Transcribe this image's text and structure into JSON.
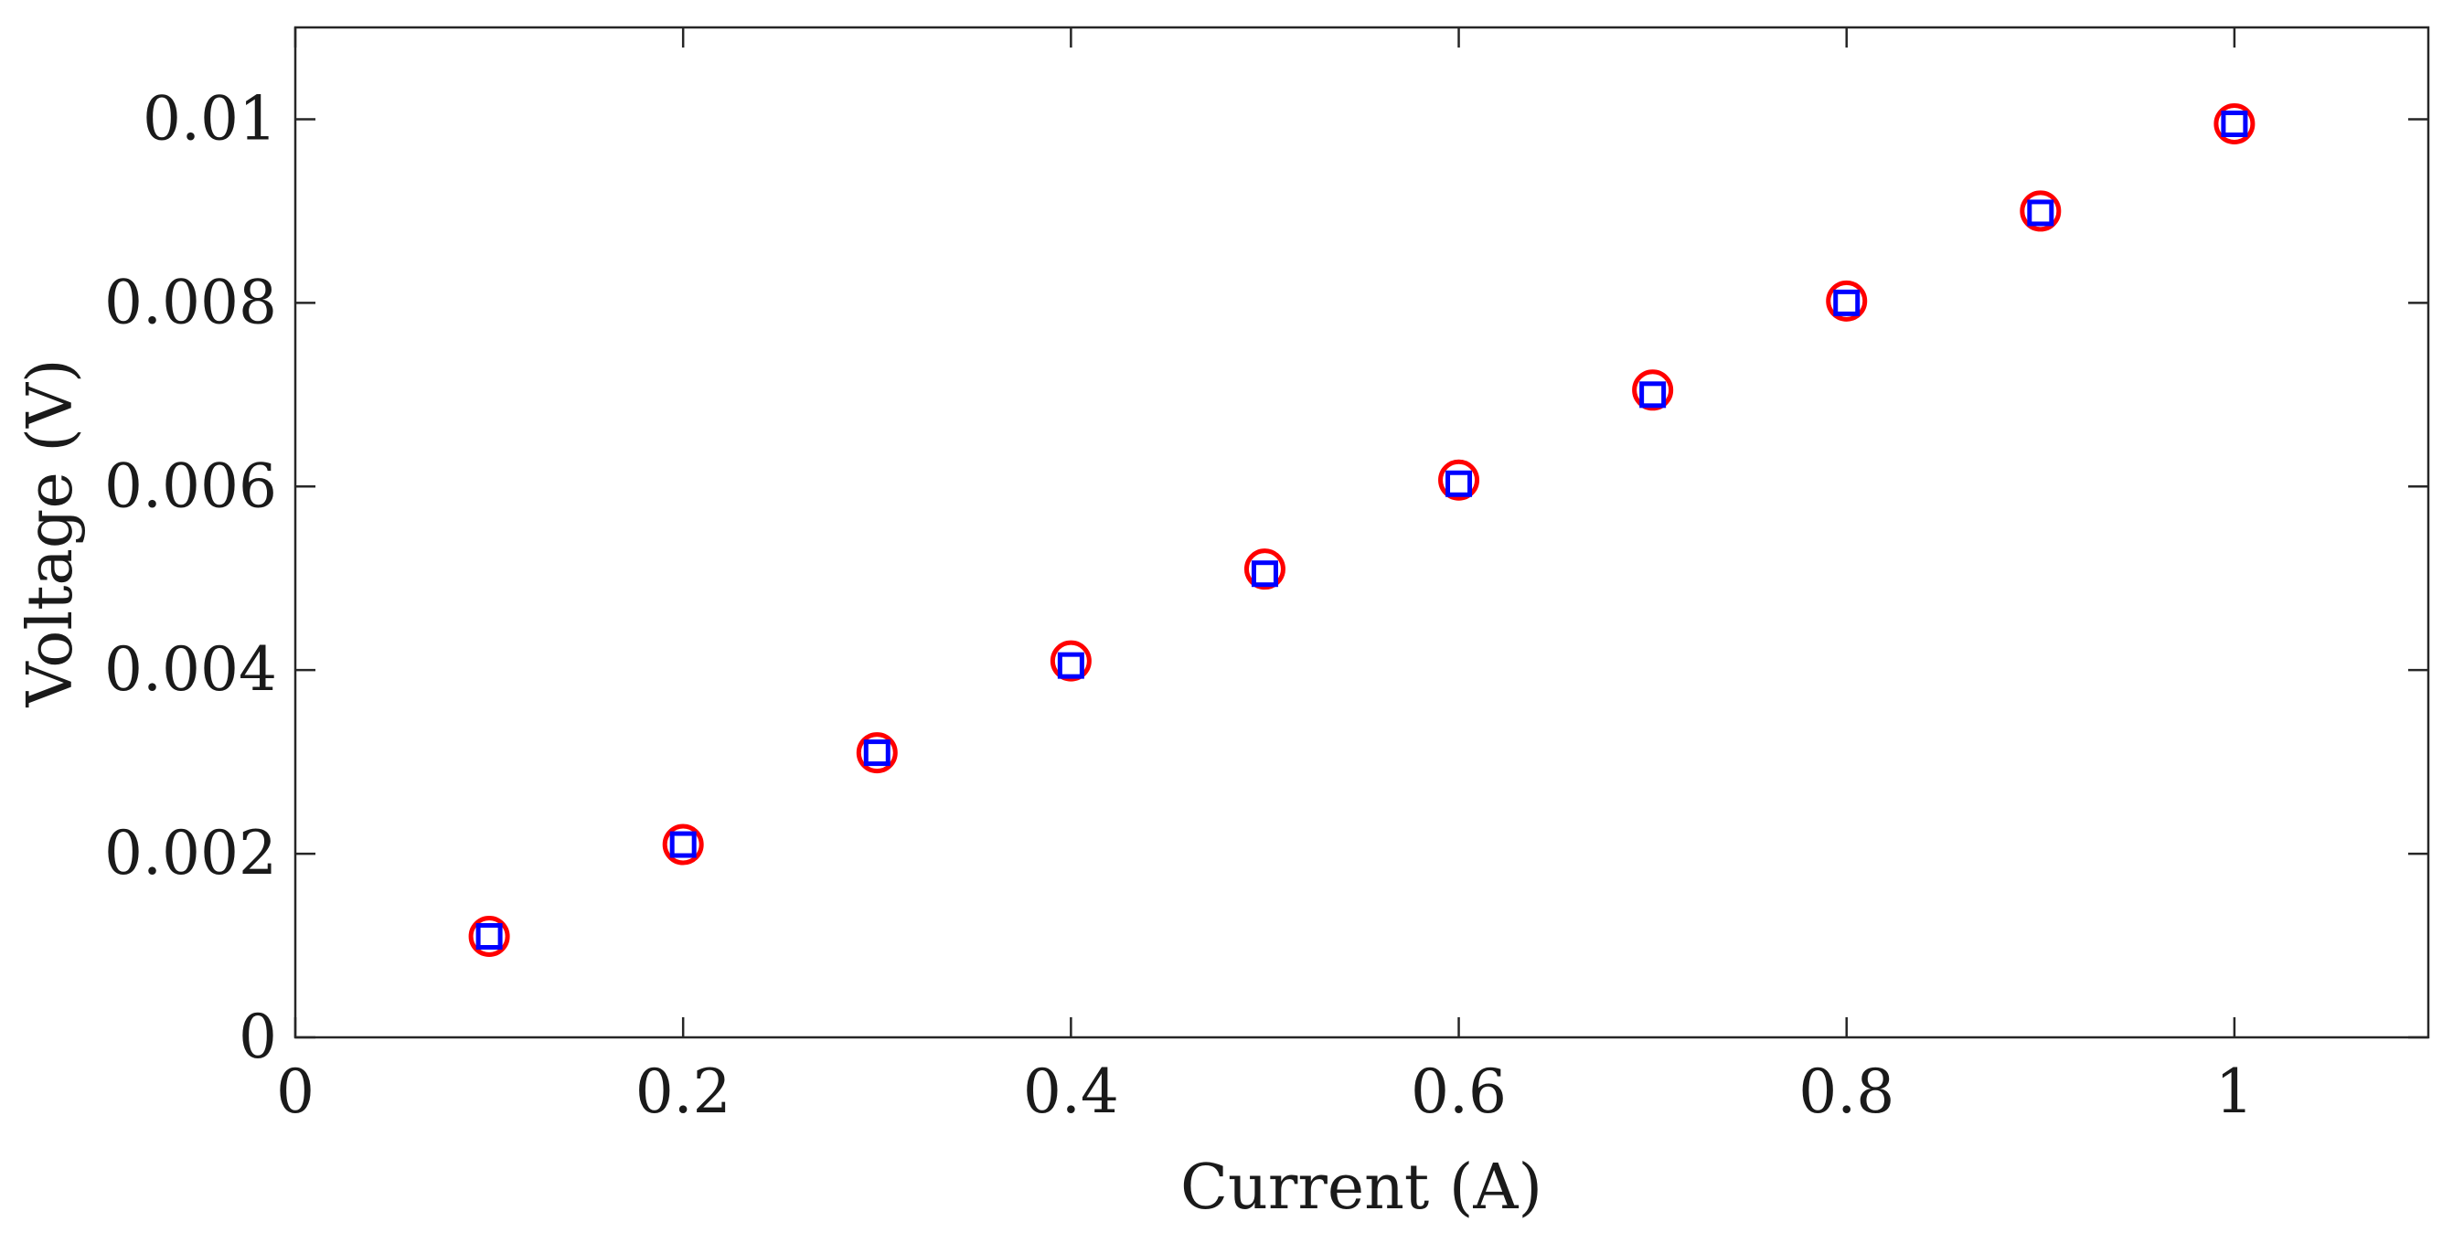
{
  "chart_data": {
    "type": "scatter",
    "title": "",
    "xlabel": "Current (A)",
    "ylabel": "Voltage (V)",
    "xlim": [
      0,
      1.1
    ],
    "ylim": [
      0,
      0.011
    ],
    "grid": false,
    "legend": "none",
    "x_ticks": [
      0,
      0.2,
      0.4,
      0.6,
      0.8,
      1
    ],
    "x_tick_labels": [
      "0",
      "0.2",
      "0.4",
      "0.6",
      "0.8",
      "1"
    ],
    "y_ticks": [
      0,
      0.002,
      0.004,
      0.006,
      0.008,
      0.01
    ],
    "y_tick_labels": [
      "0",
      "0.002",
      "0.004",
      "0.006",
      "0.008",
      "0.01"
    ],
    "series": [
      {
        "marker": "circle",
        "color": "#ff0000",
        "x": [
          0.1,
          0.2,
          0.3,
          0.4,
          0.5,
          0.6,
          0.7,
          0.8,
          0.9,
          1.0
        ],
        "y": [
          0.0011,
          0.0021,
          0.0031,
          0.0041,
          0.0051,
          0.00607,
          0.00705,
          0.00802,
          0.009,
          0.00995
        ]
      },
      {
        "marker": "square",
        "color": "#0000ff",
        "x": [
          0.1,
          0.2,
          0.3,
          0.4,
          0.5,
          0.6,
          0.7,
          0.8,
          0.9,
          1.0
        ],
        "y": [
          0.0011,
          0.0021,
          0.0031,
          0.00405,
          0.00505,
          0.00603,
          0.007,
          0.008,
          0.00898,
          0.00995
        ]
      }
    ]
  }
}
